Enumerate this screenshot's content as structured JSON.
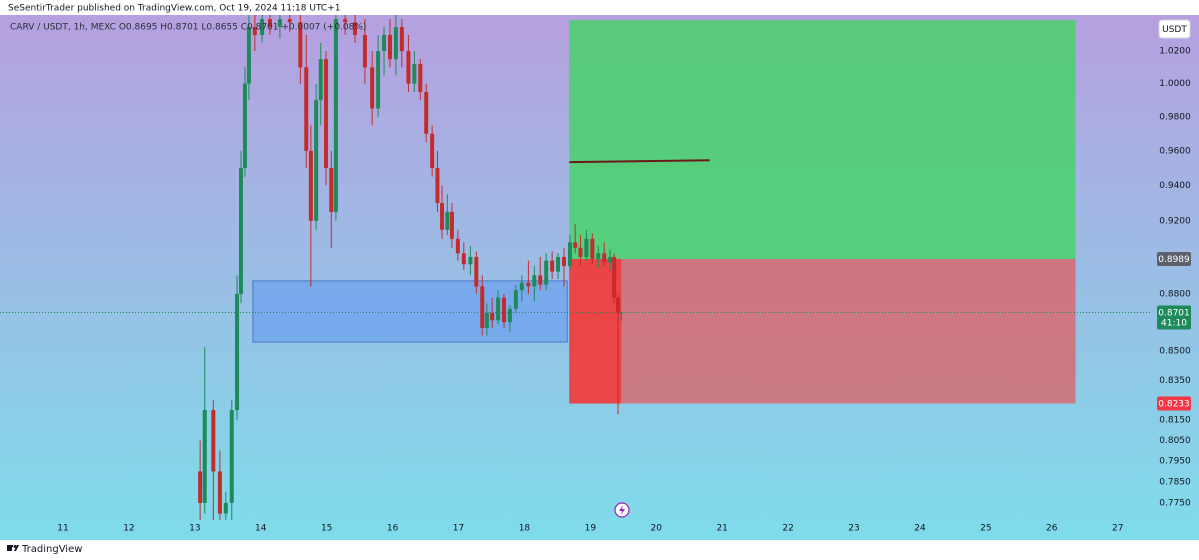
{
  "chart_data": {
    "type": "candlestick",
    "header": "SeSentirTrader published on TradingView.com, Oct 19, 2024 11:18 UTC+1",
    "title": "CARV / USDT, 1h, MEXC O0.8695 H0.8701 L0.8655 C0.8701 +0.0007 (+0.08%)",
    "footer": "TradingView",
    "y_axis_label": "USDT",
    "log": true,
    "grid": false,
    "up_color": "#1e8a5a",
    "down_color": "#c42b2b",
    "background": [
      "#b6a0e0",
      "#7edcea"
    ],
    "xlim": [
      10.044,
      27.49
    ],
    "xticks": [
      11,
      12,
      13,
      14,
      15,
      16,
      17,
      18,
      19,
      20,
      21,
      22,
      23,
      24,
      25,
      26,
      27
    ],
    "ylim": [
      0.767,
      1.0426
    ],
    "yticks": [
      {
        "value": 1.02,
        "label": "1.0200"
      },
      {
        "value": 1.0,
        "label": "1.0000"
      },
      {
        "value": 0.98,
        "label": "0.9800"
      },
      {
        "value": 0.96,
        "label": "0.9600"
      },
      {
        "value": 0.94,
        "label": "0.9400"
      },
      {
        "value": 0.92,
        "label": "0.9200"
      },
      {
        "value": 0.88,
        "label": "0.8800"
      },
      {
        "value": 0.85,
        "label": "0.8500"
      },
      {
        "value": 0.835,
        "label": "0.8350"
      },
      {
        "value": 0.815,
        "label": "0.8150"
      },
      {
        "value": 0.805,
        "label": "0.8050"
      },
      {
        "value": 0.795,
        "label": "0.7950"
      },
      {
        "value": 0.785,
        "label": "0.7850"
      },
      {
        "value": 0.775,
        "label": "0.7750"
      }
    ],
    "x": [
      13.08,
      13.15,
      13.28,
      13.38,
      13.47,
      13.56,
      13.64,
      13.7,
      13.76,
      13.82,
      13.91,
      14.02,
      14.14,
      14.29,
      14.44,
      14.6,
      14.69,
      14.76,
      14.84,
      14.91,
      14.99,
      15.07,
      15.14,
      15.28,
      15.43,
      15.58,
      15.69,
      15.78,
      15.87,
      15.96,
      16.05,
      16.14,
      16.24,
      16.33,
      16.42,
      16.51,
      16.6,
      16.68,
      16.75,
      16.83,
      16.9,
      16.99,
      17.08,
      17.18,
      17.27,
      17.36,
      17.43,
      17.51,
      17.6,
      17.69,
      17.78,
      17.87,
      17.96,
      18.06,
      18.15,
      18.24,
      18.33,
      18.42,
      18.51,
      18.6,
      18.69,
      18.77,
      18.85,
      18.94,
      19.03,
      19.12,
      19.21,
      19.3,
      19.36,
      19.42,
      19.47
    ],
    "open": [
      0.79,
      0.775,
      0.82,
      0.79,
      0.77,
      0.775,
      0.82,
      0.88,
      0.95,
      1.0,
      1.035,
      1.03,
      1.04,
      1.035,
      1.04,
      1.038,
      1.01,
      0.96,
      0.92,
      0.99,
      1.015,
      0.95,
      0.925,
      1.04,
      1.038,
      1.03,
      1.01,
      0.985,
      1.02,
      1.03,
      1.015,
      1.035,
      1.02,
      1.0,
      1.012,
      0.995,
      0.97,
      0.95,
      0.93,
      0.915,
      0.925,
      0.91,
      0.902,
      0.896,
      0.9,
      0.884,
      0.862,
      0.87,
      0.866,
      0.878,
      0.865,
      0.872,
      0.882,
      0.886,
      0.884,
      0.89,
      0.885,
      0.898,
      0.892,
      0.9,
      0.895,
      0.908,
      0.905,
      0.9,
      0.91,
      0.899,
      0.902,
      0.897,
      0.9,
      0.878,
      0.8695
    ],
    "high": [
      0.805,
      0.852,
      0.825,
      0.8,
      0.78,
      0.825,
      0.89,
      0.96,
      1.01,
      1.0426,
      1.0426,
      1.0426,
      1.0426,
      1.0426,
      1.0426,
      1.0426,
      1.03,
      0.975,
      1.0,
      1.025,
      1.02,
      0.96,
      1.0426,
      1.0426,
      1.0426,
      1.04,
      1.02,
      1.03,
      1.035,
      1.04,
      1.0426,
      1.04,
      1.03,
      1.02,
      1.015,
      1.0,
      0.975,
      0.96,
      0.94,
      0.935,
      0.93,
      0.915,
      0.908,
      0.906,
      0.903,
      0.89,
      0.875,
      0.878,
      0.882,
      0.88,
      0.874,
      0.885,
      0.89,
      0.898,
      0.895,
      0.9,
      0.902,
      0.903,
      0.902,
      0.905,
      0.912,
      0.918,
      0.912,
      0.915,
      0.913,
      0.906,
      0.908,
      0.904,
      0.902,
      0.88,
      0.8701
    ],
    "low": [
      0.767,
      0.77,
      0.767,
      0.767,
      0.767,
      0.767,
      0.815,
      0.875,
      0.945,
      0.99,
      1.02,
      1.025,
      1.03,
      1.028,
      1.032,
      1.0,
      0.95,
      0.884,
      0.915,
      0.975,
      0.94,
      0.905,
      0.92,
      1.03,
      1.025,
      1.0,
      0.975,
      0.98,
      1.005,
      1.01,
      1.005,
      1.01,
      0.995,
      0.995,
      0.99,
      0.965,
      0.945,
      0.925,
      0.91,
      0.912,
      0.905,
      0.898,
      0.893,
      0.89,
      0.88,
      0.858,
      0.858,
      0.862,
      0.864,
      0.862,
      0.86,
      0.87,
      0.876,
      0.88,
      0.876,
      0.882,
      0.882,
      0.888,
      0.888,
      0.884,
      0.893,
      0.902,
      0.895,
      0.898,
      0.896,
      0.894,
      0.895,
      0.893,
      0.875,
      0.818,
      0.8655
    ],
    "close": [
      0.775,
      0.82,
      0.79,
      0.77,
      0.775,
      0.82,
      0.88,
      0.95,
      1.0,
      1.035,
      1.03,
      1.04,
      1.035,
      1.04,
      1.038,
      1.01,
      0.96,
      0.92,
      0.99,
      1.015,
      0.95,
      0.925,
      1.04,
      1.038,
      1.03,
      1.01,
      0.985,
      1.02,
      1.03,
      1.015,
      1.035,
      1.02,
      1.0,
      1.012,
      0.995,
      0.97,
      0.95,
      0.93,
      0.915,
      0.925,
      0.91,
      0.902,
      0.896,
      0.9,
      0.884,
      0.862,
      0.87,
      0.866,
      0.878,
      0.865,
      0.872,
      0.882,
      0.886,
      0.884,
      0.89,
      0.885,
      0.898,
      0.892,
      0.9,
      0.895,
      0.908,
      0.905,
      0.9,
      0.91,
      0.899,
      0.902,
      0.897,
      0.9,
      0.878,
      0.87,
      0.8701
    ],
    "rectangle": {
      "x": [
        13.88,
        18.65
      ],
      "y": [
        0.8546,
        0.887
      ],
      "color": "rgba(95,150,240,0.55)",
      "border": "#4a78c8"
    },
    "position": {
      "x": [
        18.68,
        26.36
      ],
      "target": 1.0394,
      "entry": 0.8989,
      "stop": 0.8233,
      "profit_color": "rgba(60,215,90,0.75)",
      "loss_color": "rgba(235,80,80,0.65)",
      "active_loss_color": "rgba(240,60,60,0.85)"
    },
    "trend_line": {
      "x": [
        18.68,
        20.81
      ],
      "y": [
        0.9534,
        0.9545
      ],
      "color": "#6b1a1a"
    },
    "price_tags": [
      {
        "value": 0.8989,
        "color": "#5d606b"
      },
      {
        "value": 0.8233,
        "color": "#f23645"
      }
    ],
    "current_price": {
      "value": 0.8701,
      "countdown": "41:10",
      "color": "#1e8a5a"
    }
  }
}
